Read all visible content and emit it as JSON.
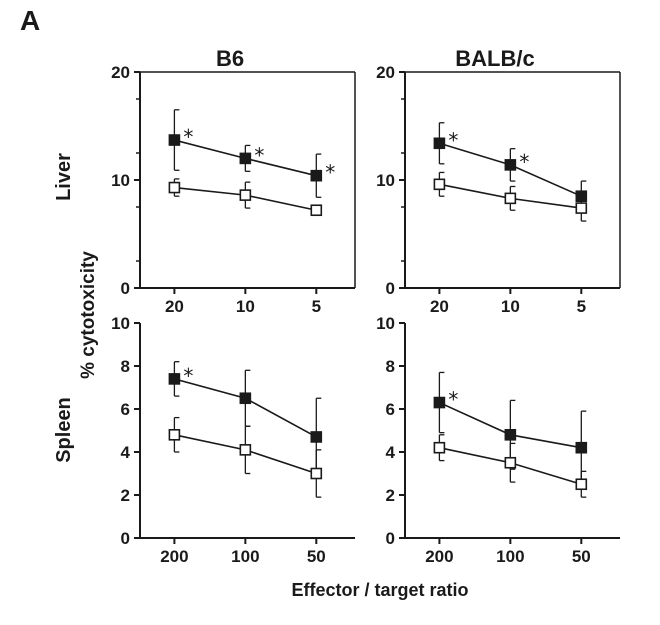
{
  "figure": {
    "panel_letter": "A",
    "columns": [
      "B6",
      "BALB/c"
    ],
    "rows": [
      "Liver",
      "Spleen"
    ],
    "ylabel": "% cytotoxicity",
    "xlabel": "Effector / target ratio"
  },
  "chart_data": [
    {
      "type": "line",
      "strain": "B6",
      "organ": "Liver",
      "categories": [
        "20",
        "10",
        "5"
      ],
      "ylim": [
        0,
        20
      ],
      "yticks": [
        0,
        10,
        20
      ],
      "series": [
        {
          "marker": "filled-square",
          "values": [
            13.7,
            12.0,
            10.4
          ],
          "errors": [
            2.8,
            1.2,
            2.0
          ],
          "significant": [
            true,
            true,
            true
          ]
        },
        {
          "marker": "open-square",
          "values": [
            9.3,
            8.6,
            7.2
          ],
          "errors": [
            0.8,
            1.2,
            0.4
          ],
          "significant": [
            false,
            false,
            false
          ]
        }
      ]
    },
    {
      "type": "line",
      "strain": "BALB/c",
      "organ": "Liver",
      "categories": [
        "20",
        "10",
        "5"
      ],
      "ylim": [
        0,
        20
      ],
      "yticks": [
        0,
        10,
        20
      ],
      "series": [
        {
          "marker": "filled-square",
          "values": [
            13.4,
            11.4,
            8.5
          ],
          "errors": [
            1.9,
            1.5,
            1.4
          ],
          "significant": [
            true,
            true,
            false
          ]
        },
        {
          "marker": "open-square",
          "values": [
            9.6,
            8.3,
            7.4
          ],
          "errors": [
            1.1,
            1.1,
            1.2
          ],
          "significant": [
            false,
            false,
            false
          ]
        }
      ]
    },
    {
      "type": "line",
      "strain": "B6",
      "organ": "Spleen",
      "categories": [
        "200",
        "100",
        "50"
      ],
      "ylim": [
        0,
        10
      ],
      "yticks": [
        0,
        2,
        4,
        6,
        8,
        10
      ],
      "series": [
        {
          "marker": "filled-square",
          "values": [
            7.4,
            6.5,
            4.7
          ],
          "errors": [
            0.8,
            1.3,
            1.8
          ],
          "significant": [
            true,
            false,
            false
          ]
        },
        {
          "marker": "open-square",
          "values": [
            4.8,
            4.1,
            3.0
          ],
          "errors": [
            0.8,
            1.1,
            1.1
          ],
          "significant": [
            false,
            false,
            false
          ]
        }
      ]
    },
    {
      "type": "line",
      "strain": "BALB/c",
      "organ": "Spleen",
      "categories": [
        "200",
        "100",
        "50"
      ],
      "ylim": [
        0,
        10
      ],
      "yticks": [
        0,
        2,
        4,
        6,
        8,
        10
      ],
      "series": [
        {
          "marker": "filled-square",
          "values": [
            6.3,
            4.8,
            4.2
          ],
          "errors": [
            1.4,
            1.6,
            1.7
          ],
          "significant": [
            true,
            false,
            false
          ]
        },
        {
          "marker": "open-square",
          "values": [
            4.2,
            3.5,
            2.5
          ],
          "errors": [
            0.6,
            0.9,
            0.6
          ],
          "significant": [
            false,
            false,
            false
          ]
        }
      ]
    }
  ]
}
